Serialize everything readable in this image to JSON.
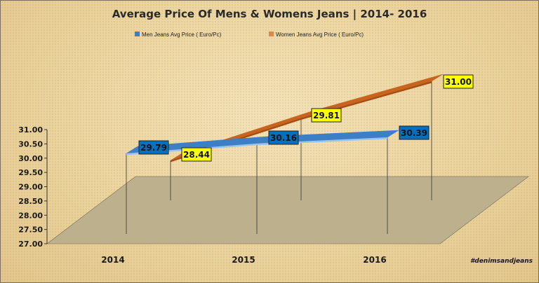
{
  "chart_data": {
    "type": "line",
    "title": "Average Price Of Mens & Womens Jeans | 2014- 2016",
    "categories": [
      "2014",
      "2015",
      "2016"
    ],
    "series": [
      {
        "name": "Men Jeans Avg Price ( Euro/Pc)",
        "values": [
          29.79,
          30.16,
          30.39
        ],
        "color": "#3d7fc6",
        "label_bg": "#0070c0"
      },
      {
        "name": "Women Jeans Avg Price ( Euro/Pc)",
        "values": [
          28.44,
          29.81,
          31.0
        ],
        "color": "#c8641e",
        "label_bg": "#ffff00"
      }
    ],
    "ylim": [
      27.0,
      31.0
    ],
    "yticks": [
      "31.00",
      "30.50",
      "30.00",
      "29.50",
      "29.00",
      "28.50",
      "28.00",
      "27.50",
      "27.00"
    ],
    "data_labels": [
      [
        "29.79",
        "30.16",
        "30.39"
      ],
      [
        "28.44",
        "29.81",
        "31.00"
      ]
    ],
    "legend_position": "top",
    "grid": false,
    "floor_color": "#bdb08d",
    "annotation": "#denimsandjeans"
  }
}
